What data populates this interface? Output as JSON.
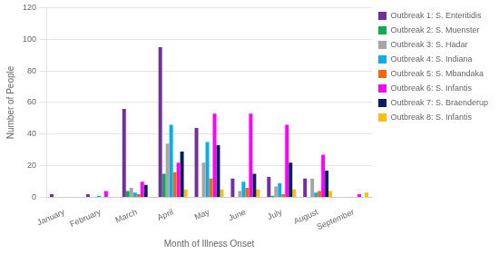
{
  "chart_data": {
    "type": "bar",
    "categories": [
      "January",
      "February",
      "March",
      "April",
      "May",
      "June",
      "July",
      "August",
      "September"
    ],
    "series": [
      {
        "name": "Outbreak 1: S. Enteritidis",
        "color": "#7030A0",
        "values": [
          2,
          2,
          56,
          95,
          44,
          12,
          13,
          12,
          0
        ]
      },
      {
        "name": "Outbreak 2: S. Muenster",
        "color": "#00B050",
        "values": [
          0,
          0,
          4,
          15,
          0,
          0,
          1,
          0,
          0
        ]
      },
      {
        "name": "Outbreak 3: S. Hadar",
        "color": "#A6A6A6",
        "values": [
          0,
          0,
          6,
          34,
          22,
          4,
          7,
          12,
          0
        ]
      },
      {
        "name": "Outbreak 4: S. Indiana",
        "color": "#00B0F0",
        "values": [
          0,
          1,
          3,
          46,
          35,
          10,
          9,
          3,
          0
        ]
      },
      {
        "name": "Outbreak 5: S. Mbandaka",
        "color": "#FF6600",
        "values": [
          0,
          0,
          2,
          16,
          12,
          6,
          2,
          4,
          0
        ]
      },
      {
        "name": "Outbreak 6: S. Infantis",
        "color": "#FF00FF",
        "values": [
          0,
          4,
          10,
          22,
          53,
          53,
          46,
          27,
          2
        ]
      },
      {
        "name": "Outbreak 7: S. Braenderup",
        "color": "#002060",
        "values": [
          0,
          0,
          8,
          29,
          33,
          15,
          22,
          17,
          0
        ]
      },
      {
        "name": "Outbreak 8: S. Infantis",
        "color": "#FFC000",
        "values": [
          0,
          0,
          0,
          5,
          5,
          5,
          5,
          4,
          3
        ]
      }
    ],
    "ylabel": "Number of People",
    "xlabel": "Month of Illness Onset",
    "ylim": [
      0,
      120
    ],
    "yticks": [
      0,
      20,
      40,
      60,
      80,
      100,
      120
    ],
    "grid": true,
    "legend": "right"
  }
}
